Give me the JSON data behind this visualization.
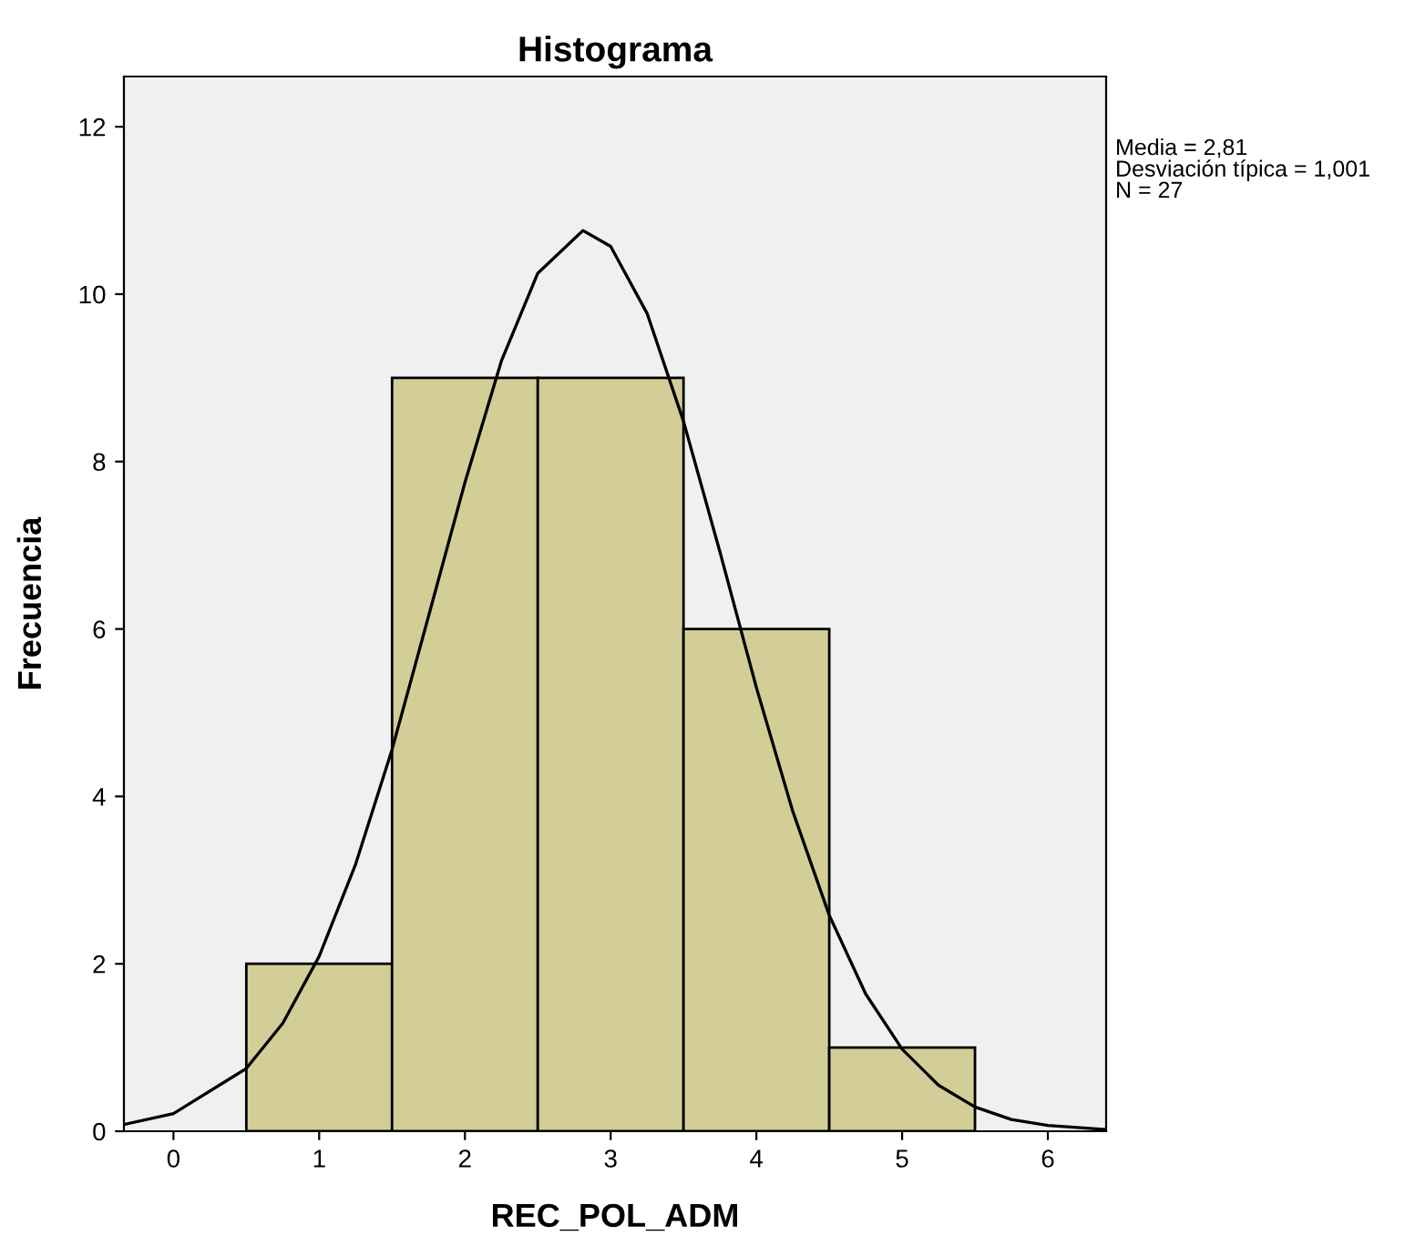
{
  "chart_data": {
    "type": "histogram",
    "title": "Histograma",
    "xlabel": "REC_POL_ADM",
    "ylabel": "Frecuencia",
    "annotations": [
      "Media = 2,81\nDesviación típica = 1,001\nN = 27"
    ],
    "xlim": [
      -0.34,
      6.4
    ],
    "ylim": [
      0,
      12.6
    ],
    "xticks": [
      0,
      1,
      2,
      3,
      4,
      5,
      6
    ],
    "yticks": [
      0,
      2,
      4,
      6,
      8,
      10,
      12
    ],
    "grid": false,
    "series": [
      {
        "color": "#d3ce97",
        "bins": [
          0.5,
          1.5,
          2.5,
          3.5,
          4.5,
          5.5
        ],
        "values": [
          2,
          9,
          9,
          6,
          1
        ]
      },
      {
        "type": "line",
        "color": "#000000",
        "x": [
          -0.34,
          0,
          0.5,
          0.75,
          1,
          1.25,
          1.5,
          1.75,
          2,
          2.25,
          2.5,
          2.81,
          3,
          3.25,
          3.5,
          3.75,
          4,
          4.25,
          4.5,
          4.75,
          5,
          5.25,
          5.5,
          5.75,
          6,
          6.4
        ],
        "values": [
          0.08,
          0.21,
          0.75,
          1.29,
          2.09,
          3.19,
          4.56,
          6.15,
          7.75,
          9.2,
          10.25,
          10.76,
          10.57,
          9.77,
          8.48,
          6.92,
          5.3,
          3.82,
          2.58,
          1.64,
          0.98,
          0.55,
          0.29,
          0.14,
          0.07,
          0.02
        ]
      }
    ]
  }
}
